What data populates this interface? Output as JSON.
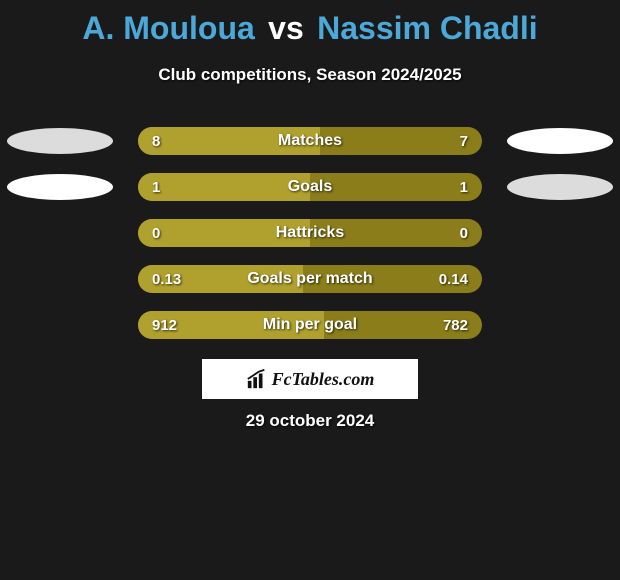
{
  "title": {
    "player1": "A. Mouloua",
    "vs": "vs",
    "player2": "Nassim Chadli",
    "player1_color": "#4ca8d9",
    "vs_color": "#ffffff",
    "player2_color": "#4ca8d9"
  },
  "subtitle": "Club competitions, Season 2024/2025",
  "colors": {
    "bar_primary": "#b0a02e",
    "bar_secondary": "#8a7d1a",
    "oval_gray": "#dcdcdc",
    "oval_white": "#ffffff",
    "background": "#1a1a1a"
  },
  "stats": [
    {
      "label": "Matches",
      "left_value": "8",
      "right_value": "7",
      "fill_pct": 53,
      "show_left_oval": true,
      "show_right_oval": true,
      "left_oval_color": "#dcdcdc",
      "right_oval_color": "#ffffff"
    },
    {
      "label": "Goals",
      "left_value": "1",
      "right_value": "1",
      "fill_pct": 50,
      "show_left_oval": true,
      "show_right_oval": true,
      "left_oval_color": "#ffffff",
      "right_oval_color": "#dcdcdc"
    },
    {
      "label": "Hattricks",
      "left_value": "0",
      "right_value": "0",
      "fill_pct": 50,
      "show_left_oval": false,
      "show_right_oval": false
    },
    {
      "label": "Goals per match",
      "left_value": "0.13",
      "right_value": "0.14",
      "fill_pct": 48,
      "show_left_oval": false,
      "show_right_oval": false
    },
    {
      "label": "Min per goal",
      "left_value": "912",
      "right_value": "782",
      "fill_pct": 54,
      "show_left_oval": false,
      "show_right_oval": false
    }
  ],
  "footer": {
    "logo_text": "FcTables.com",
    "date": "29 october 2024"
  }
}
